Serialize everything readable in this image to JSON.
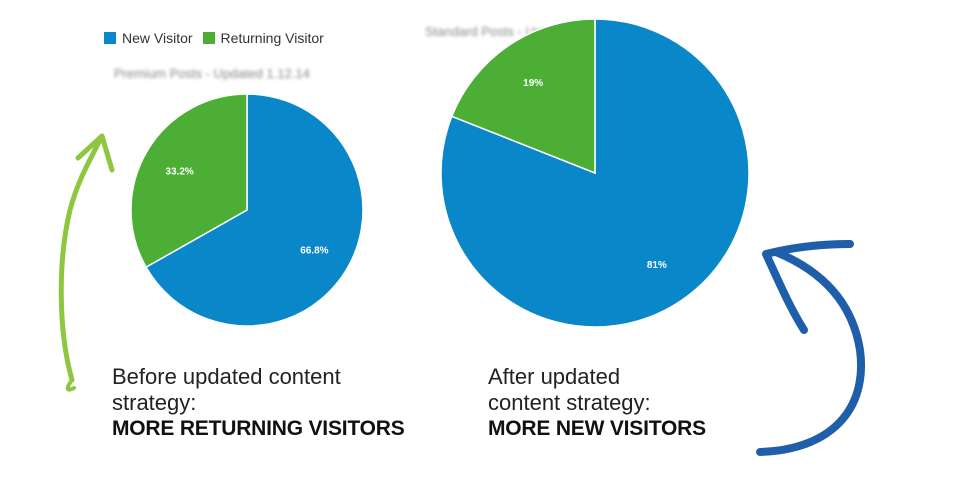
{
  "legend": [
    {
      "label": "New Visitor",
      "color": "#0a87c9"
    },
    {
      "label": "Returning Visitor",
      "color": "#4cae34"
    }
  ],
  "chart_data": [
    {
      "type": "pie",
      "title": "Premium Posts - Updated 1.12.14",
      "slices": [
        {
          "label": "New Visitor",
          "value": 66.8,
          "display": "66.8%",
          "color": "#0a87c9"
        },
        {
          "label": "Returning Visitor",
          "value": 33.2,
          "display": "33.2%",
          "color": "#4cae34"
        }
      ]
    },
    {
      "type": "pie",
      "title": "Standard Posts - Updated 12.5.14",
      "slices": [
        {
          "label": "New Visitor",
          "value": 81,
          "display": "81%",
          "color": "#0a87c9"
        },
        {
          "label": "Returning Visitor",
          "value": 19,
          "display": "19%",
          "color": "#4cae34"
        }
      ]
    }
  ],
  "captions": {
    "left": {
      "line1": "Before updated content",
      "line2": "strategy:",
      "emphasis": "MORE RETURNING VISITORS"
    },
    "right": {
      "line1": "After updated",
      "line2": "content strategy:",
      "emphasis": "MORE NEW VISITORS"
    }
  },
  "arrows": {
    "left_color": "#8dc63f",
    "right_color": "#1f5faa"
  }
}
